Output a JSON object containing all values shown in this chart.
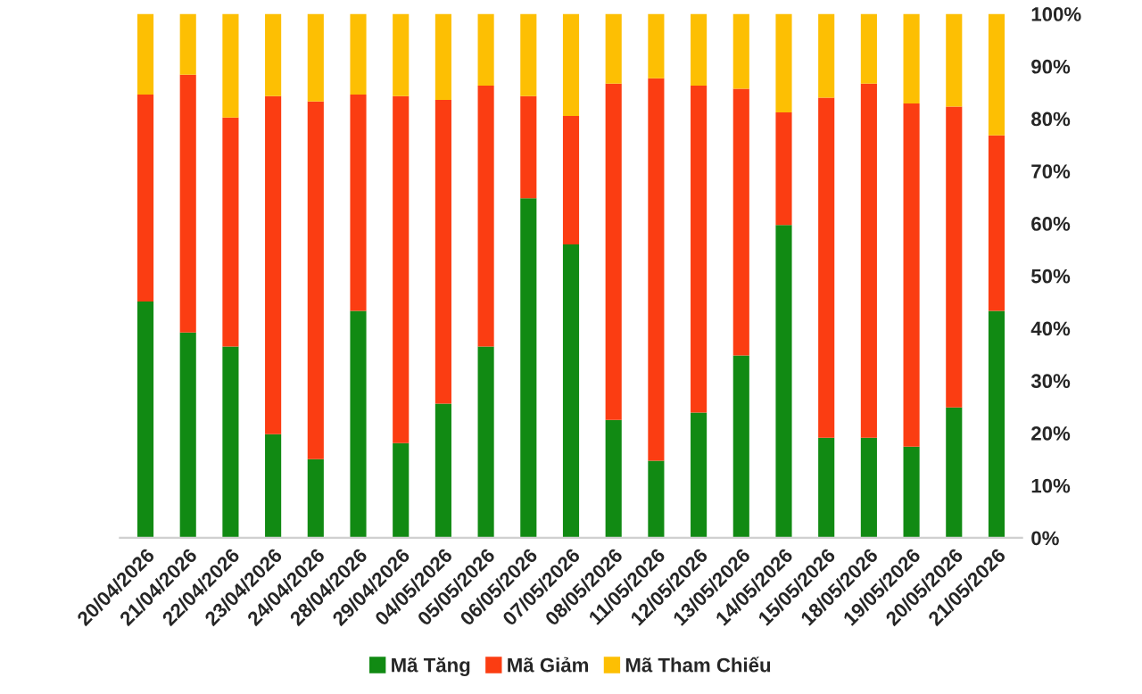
{
  "chart_data": {
    "type": "bar",
    "stacked": true,
    "categories": [
      "20/04/2026",
      "21/04/2026",
      "22/04/2026",
      "23/04/2026",
      "24/04/2026",
      "28/04/2026",
      "29/04/2026",
      "04/05/2026",
      "05/05/2026",
      "06/05/2026",
      "07/05/2026",
      "08/05/2026",
      "11/05/2026",
      "12/05/2026",
      "13/05/2026",
      "14/05/2026",
      "15/05/2026",
      "18/05/2026",
      "19/05/2026",
      "20/05/2026",
      "21/05/2026"
    ],
    "series": [
      {
        "name": "Mã Tăng",
        "color": "#118a13",
        "values": [
          45.1,
          39.2,
          36.5,
          19.8,
          15.0,
          43.3,
          18.1,
          25.6,
          36.5,
          64.8,
          56.0,
          22.5,
          14.7,
          23.9,
          34.8,
          59.7,
          19.1,
          19.1,
          17.4,
          24.9,
          43.3
        ]
      },
      {
        "name": "Mã Giảm",
        "color": "#fb3d12",
        "values": [
          39.5,
          49.2,
          43.7,
          64.5,
          68.3,
          41.3,
          66.2,
          58.0,
          49.8,
          19.5,
          24.5,
          64.2,
          73.0,
          62.4,
          50.9,
          21.5,
          64.9,
          67.6,
          65.5,
          57.4,
          33.5
        ]
      },
      {
        "name": "Mã Tham Chiếu",
        "color": "#fdbf03",
        "values": [
          15.4,
          11.6,
          19.8,
          15.7,
          16.7,
          15.4,
          15.7,
          16.4,
          13.7,
          15.7,
          19.5,
          13.3,
          12.3,
          13.7,
          14.3,
          18.8,
          16.0,
          13.3,
          17.1,
          17.7,
          23.2
        ]
      }
    ],
    "ylim": [
      0,
      100
    ],
    "yticks": [
      {
        "value": 0,
        "label": "0%"
      },
      {
        "value": 10,
        "label": "10%"
      },
      {
        "value": 20,
        "label": "20%"
      },
      {
        "value": 30,
        "label": "30%"
      },
      {
        "value": 40,
        "label": "40%"
      },
      {
        "value": 50,
        "label": "50%"
      },
      {
        "value": 60,
        "label": "60%"
      },
      {
        "value": 70,
        "label": "70%"
      },
      {
        "value": 80,
        "label": "80%"
      },
      {
        "value": 90,
        "label": "90%"
      },
      {
        "value": 100,
        "label": "100%"
      }
    ],
    "grid": false,
    "legend": "bottom"
  }
}
